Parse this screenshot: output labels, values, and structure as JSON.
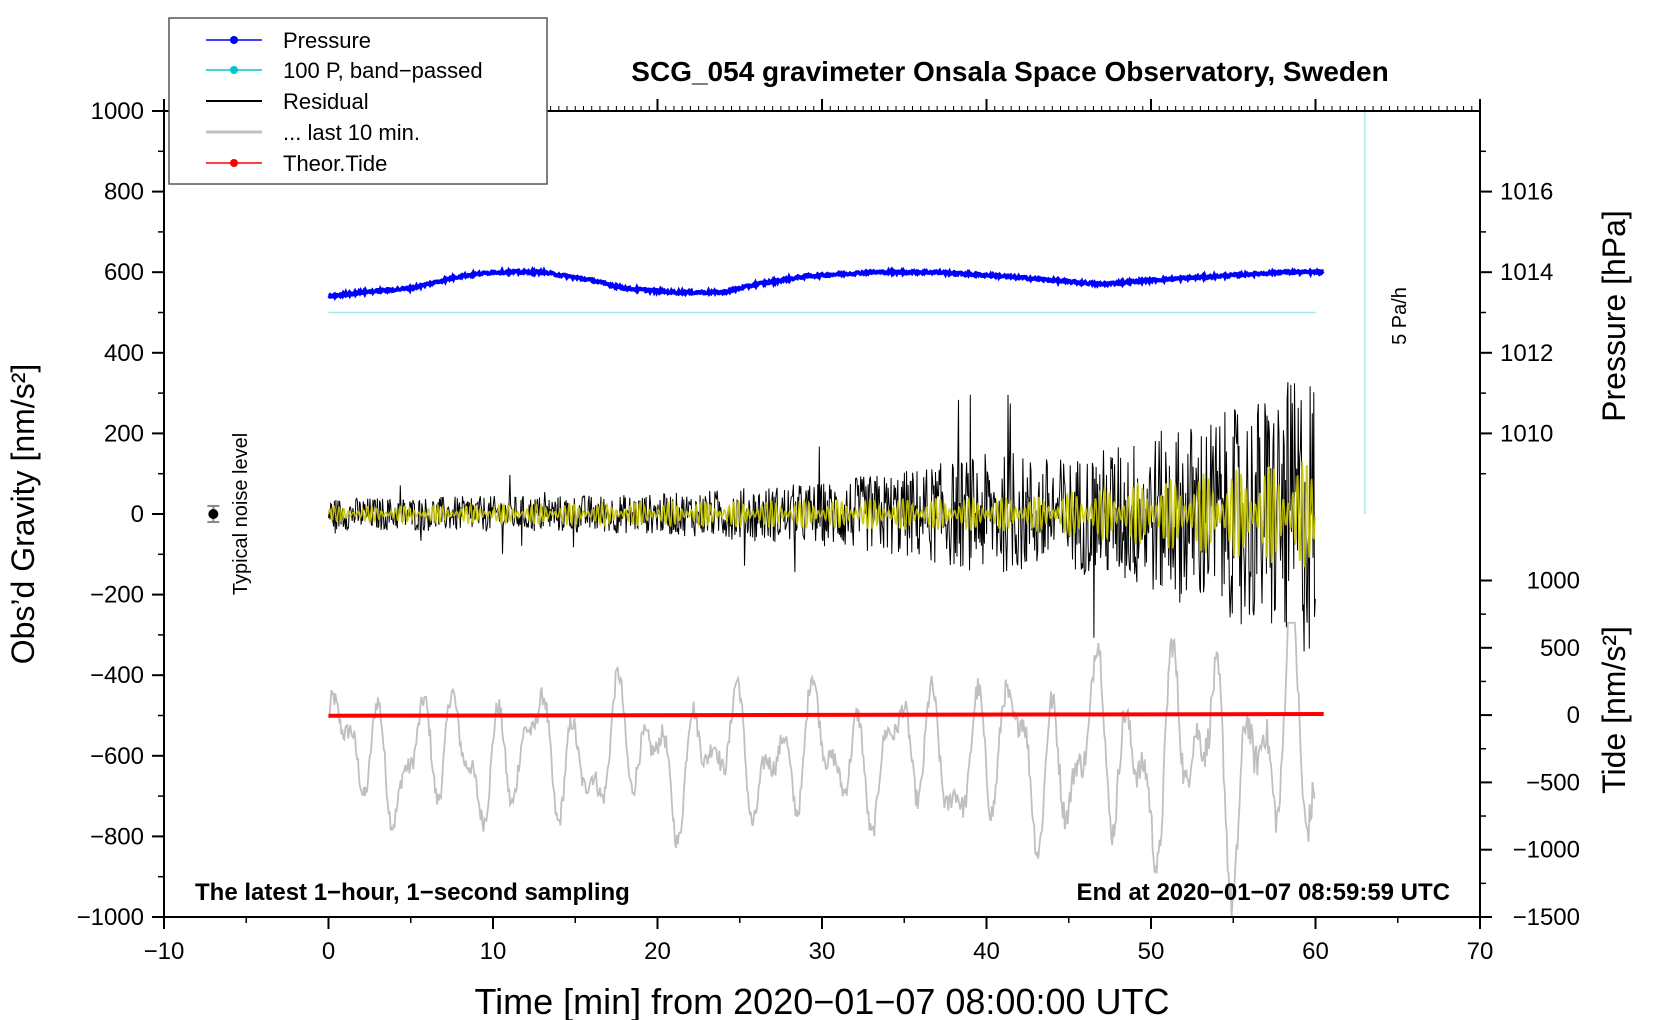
{
  "colors": {
    "pressure": "#0000ff",
    "bandpass": "#00c8c8",
    "bandpass_line": "#a8e8e8",
    "residual": "#000000",
    "last10": "#c0c0c0",
    "tide": "#ff0000",
    "filtered": "#c8c800"
  },
  "chart_data": {
    "type": "line",
    "title": "SCG_054 gravimeter Onsala Space Observatory, Sweden",
    "xlabel": "Time [min] from 2020−01−07 08:00:00 UTC",
    "ylabel_left": "Obs’d Gravity [nm/s²]",
    "ylabel_right_top": "Pressure [hPa]",
    "ylabel_right_bottom": "Tide [nm/s²]",
    "xlim": [
      -10,
      70
    ],
    "ylim_left": [
      -1000,
      1000
    ],
    "x_ticks": [
      "−10",
      "0",
      "10",
      "20",
      "30",
      "40",
      "50",
      "60",
      "70"
    ],
    "y_ticks_left": [
      "1000",
      "800",
      "600",
      "400",
      "200",
      "0",
      "−200",
      "−400",
      "−600",
      "−800",
      "−1000"
    ],
    "y_ticks_pressure": [
      "1016",
      "1014",
      "1012",
      "1010"
    ],
    "y_ticks_tide": [
      "1000",
      "500",
      "0",
      "−500",
      "−1000",
      "−1500"
    ],
    "pressure_axis": {
      "hpa": [
        1010,
        1016
      ],
      "left_equiv": [
        200,
        800
      ]
    },
    "tide_axis": {
      "value": [
        -1500,
        1000
      ],
      "left_equiv": [
        -1000,
        -165
      ]
    },
    "legend": [
      {
        "label": "Pressure",
        "series": "pressure"
      },
      {
        "label": "100 P, band−passed",
        "series": "bandpass"
      },
      {
        "label": "Residual",
        "series": "residual"
      },
      {
        "label": "... last 10 min.",
        "series": "last10"
      },
      {
        "label": "Theor.Tide",
        "series": "tide"
      }
    ],
    "legend_position": "top-left",
    "annotations": {
      "footer_left": "The latest 1−hour, 1−second sampling",
      "footer_right": "End at 2020−01−07 08:59:59 UTC",
      "noise_label": "Typical noise level",
      "rate_label": "5 Pa/h"
    },
    "noise_level": {
      "x": -7,
      "y": 0,
      "err": 20
    },
    "rate_bar": {
      "x": 63,
      "y_from": 0,
      "y_to": 1000
    },
    "series": [
      {
        "name": "Pressure",
        "unit": "hPa",
        "x_range": [
          0,
          60.5
        ],
        "points": [
          [
            0,
            1013.4
          ],
          [
            2,
            1013.5
          ],
          [
            5,
            1013.6
          ],
          [
            8,
            1013.9
          ],
          [
            10,
            1014.0
          ],
          [
            13,
            1014.0
          ],
          [
            16,
            1013.8
          ],
          [
            18,
            1013.6
          ],
          [
            21,
            1013.5
          ],
          [
            24,
            1013.5
          ],
          [
            26,
            1013.7
          ],
          [
            29,
            1013.9
          ],
          [
            33,
            1014.0
          ],
          [
            37,
            1014.0
          ],
          [
            41,
            1013.9
          ],
          [
            44,
            1013.8
          ],
          [
            47,
            1013.7
          ],
          [
            50,
            1013.8
          ],
          [
            54,
            1013.9
          ],
          [
            58,
            1014.0
          ],
          [
            60.5,
            1014.0
          ]
        ]
      },
      {
        "name": "100 P, band−passed",
        "x_range": [
          0,
          60
        ],
        "level_left_equiv": 500
      },
      {
        "name": "Residual",
        "x_range": [
          0,
          60
        ],
        "envelope": [
          [
            0,
            40
          ],
          [
            10,
            45
          ],
          [
            20,
            50
          ],
          [
            30,
            80
          ],
          [
            35,
            110
          ],
          [
            40,
            150
          ],
          [
            45,
            140
          ],
          [
            50,
            200
          ],
          [
            55,
            260
          ],
          [
            58,
            320
          ],
          [
            60,
            380
          ]
        ]
      },
      {
        "name": "... last 10 min.",
        "x_range": [
          0,
          60
        ],
        "y_center": -600,
        "y_min": -1000,
        "y_max": -270
      },
      {
        "name": "Theor.Tide",
        "x_range": [
          0,
          60.5
        ],
        "value_start": -5,
        "value_end": 8
      }
    ]
  }
}
